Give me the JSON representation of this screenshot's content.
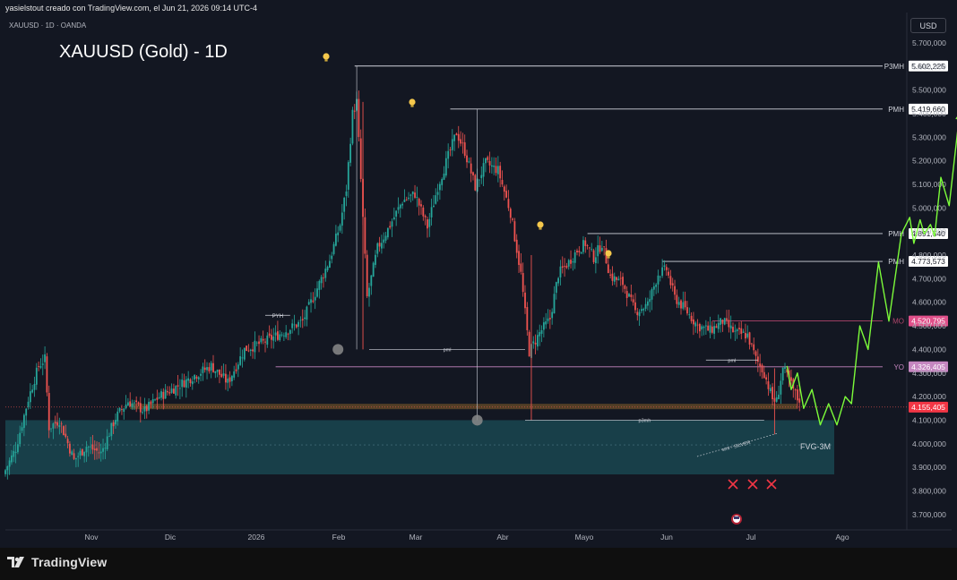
{
  "header": {
    "caption": "yasielstout creado con TradingView.com, el Jun 21, 2026 09:14 UTC-4",
    "symbol_line": "XAUUSD · 1D · OANDA",
    "title": "XAUUSD (Gold) - 1D",
    "currency_button": "USD"
  },
  "footer": {
    "brand": "TradingView"
  },
  "colors": {
    "background": "#131722",
    "bull": "#26a69a",
    "bear": "#ef5350",
    "projection": "#7cfc3a",
    "fvg_zone": "#1a4650",
    "demand_band": "#5a4427",
    "yo_line": "#c586c0",
    "mo_line": "#b0456b",
    "x_marks": "#f23645",
    "bulb": "#f5c84c"
  },
  "chart_data": {
    "type": "candlestick",
    "title": "XAUUSD (Gold) - 1D",
    "ylim": [
      3600000,
      5800000
    ],
    "y_ticks": [
      "5.700,000",
      "5.600,000",
      "5.500,000",
      "5.400,000",
      "5.300,000",
      "5.200,000",
      "5.100,000",
      "5.000,000",
      "4.900,000",
      "4.800,000",
      "4.700,000",
      "4.600,000",
      "4.500,000",
      "4.400,000",
      "4.300,000",
      "4.200,000",
      "4.100,000",
      "4.000,000",
      "3.900,000",
      "3.800,000",
      "3.700,000"
    ],
    "x_ticks": [
      "Nov",
      "Dic",
      "2026",
      "Feb",
      "Mar",
      "Abr",
      "Mayo",
      "Jun",
      "Jul",
      "Ago"
    ],
    "price_path": [
      [
        0,
        3870000
      ],
      [
        6,
        3980000
      ],
      [
        12,
        4190000
      ],
      [
        17,
        4330000
      ],
      [
        20,
        4360000
      ],
      [
        22,
        4070000
      ],
      [
        27,
        4100000
      ],
      [
        34,
        3930000
      ],
      [
        40,
        3990000
      ],
      [
        47,
        3960000
      ],
      [
        54,
        4110000
      ],
      [
        60,
        4180000
      ],
      [
        68,
        4140000
      ],
      [
        75,
        4200000
      ],
      [
        83,
        4240000
      ],
      [
        92,
        4290000
      ],
      [
        100,
        4330000
      ],
      [
        108,
        4260000
      ],
      [
        116,
        4400000
      ],
      [
        125,
        4430000
      ],
      [
        134,
        4470000
      ],
      [
        144,
        4520000
      ],
      [
        152,
        4680000
      ],
      [
        157,
        4780000
      ],
      [
        162,
        4930000
      ],
      [
        165,
        5080000
      ],
      [
        168,
        5400000
      ],
      [
        170,
        5450000
      ],
      [
        172,
        5120000
      ],
      [
        175,
        4620000
      ],
      [
        180,
        4830000
      ],
      [
        185,
        4910000
      ],
      [
        192,
        5030000
      ],
      [
        198,
        5060000
      ],
      [
        204,
        4920000
      ],
      [
        209,
        5090000
      ],
      [
        214,
        5220000
      ],
      [
        218,
        5320000
      ],
      [
        222,
        5240000
      ],
      [
        227,
        5090000
      ],
      [
        232,
        5190000
      ],
      [
        238,
        5160000
      ],
      [
        244,
        4980000
      ],
      [
        249,
        4720000
      ],
      [
        253,
        4390000
      ],
      [
        258,
        4470000
      ],
      [
        263,
        4530000
      ],
      [
        267,
        4720000
      ],
      [
        272,
        4770000
      ],
      [
        276,
        4820000
      ],
      [
        280,
        4850000
      ],
      [
        284,
        4790000
      ],
      [
        288,
        4850000
      ],
      [
        292,
        4710000
      ],
      [
        298,
        4680000
      ],
      [
        304,
        4560000
      ],
      [
        310,
        4590000
      ],
      [
        315,
        4720000
      ],
      [
        319,
        4740000
      ],
      [
        323,
        4620000
      ],
      [
        328,
        4570000
      ],
      [
        334,
        4500000
      ],
      [
        340,
        4480000
      ],
      [
        346,
        4520000
      ],
      [
        352,
        4470000
      ],
      [
        358,
        4460000
      ],
      [
        362,
        4360000
      ],
      [
        366,
        4300000
      ],
      [
        370,
        4190000
      ],
      [
        372,
        4180000
      ],
      [
        375,
        4320000
      ],
      [
        379,
        4250000
      ],
      [
        382,
        4190000
      ]
    ],
    "projection_path": [
      [
        376,
        4330000
      ],
      [
        378,
        4230000
      ],
      [
        381,
        4300000
      ],
      [
        384,
        4150000
      ],
      [
        388,
        4230000
      ],
      [
        392,
        4080000
      ],
      [
        396,
        4170000
      ],
      [
        400,
        4080000
      ],
      [
        404,
        4200000
      ],
      [
        407,
        4170000
      ],
      [
        411,
        4500000
      ],
      [
        415,
        4400000
      ],
      [
        420,
        4770000
      ],
      [
        425,
        4520000
      ],
      [
        431,
        4890000
      ],
      [
        435,
        4960000
      ],
      [
        437,
        4850000
      ],
      [
        440,
        4950000
      ],
      [
        442,
        4890000
      ],
      [
        445,
        4930000
      ],
      [
        447,
        4880000
      ],
      [
        450,
        5130000
      ],
      [
        454,
        5010000
      ],
      [
        459,
        5400000
      ]
    ],
    "levels": [
      {
        "label": "P3MH",
        "value": "5.602,225",
        "price": 5602225,
        "from": 168,
        "to": 460
      },
      {
        "label": "PMH",
        "value": "5.419,660",
        "price": 5419660,
        "from": 214,
        "to": 460
      },
      {
        "label": "PMH",
        "value": "4.891,540",
        "price": 4891540,
        "from": 280,
        "to": 460
      },
      {
        "label": "PMH",
        "value": "4.773,573",
        "price": 4773573,
        "from": 316,
        "to": 460
      },
      {
        "label": "MO",
        "value": "4.520,795",
        "price": 4520795,
        "from": 340,
        "to": 460
      },
      {
        "label": "YO",
        "value": "4.326,405",
        "price": 4326405,
        "from": 130,
        "to": 460
      }
    ],
    "current_price": {
      "value": "4.155,405",
      "price": 4155405
    },
    "annotations": {
      "pyh": {
        "label": "PYH",
        "price": 4545000,
        "from": 125,
        "to": 137
      },
      "pml_upper": {
        "label": "pml",
        "price": 4400000,
        "from": 175,
        "to": 250
      },
      "pml_lower": {
        "label": "pml",
        "price": 4355000,
        "from": 337,
        "to": 362
      },
      "p3ml": {
        "label": "p3mh",
        "price": 4100000,
        "from": 250,
        "to": 365
      },
      "fvg": {
        "label": "FVG-3M",
        "top": 4100000,
        "bottom": 3870000
      },
      "smt": {
        "label": "smt - SILVER"
      }
    }
  }
}
